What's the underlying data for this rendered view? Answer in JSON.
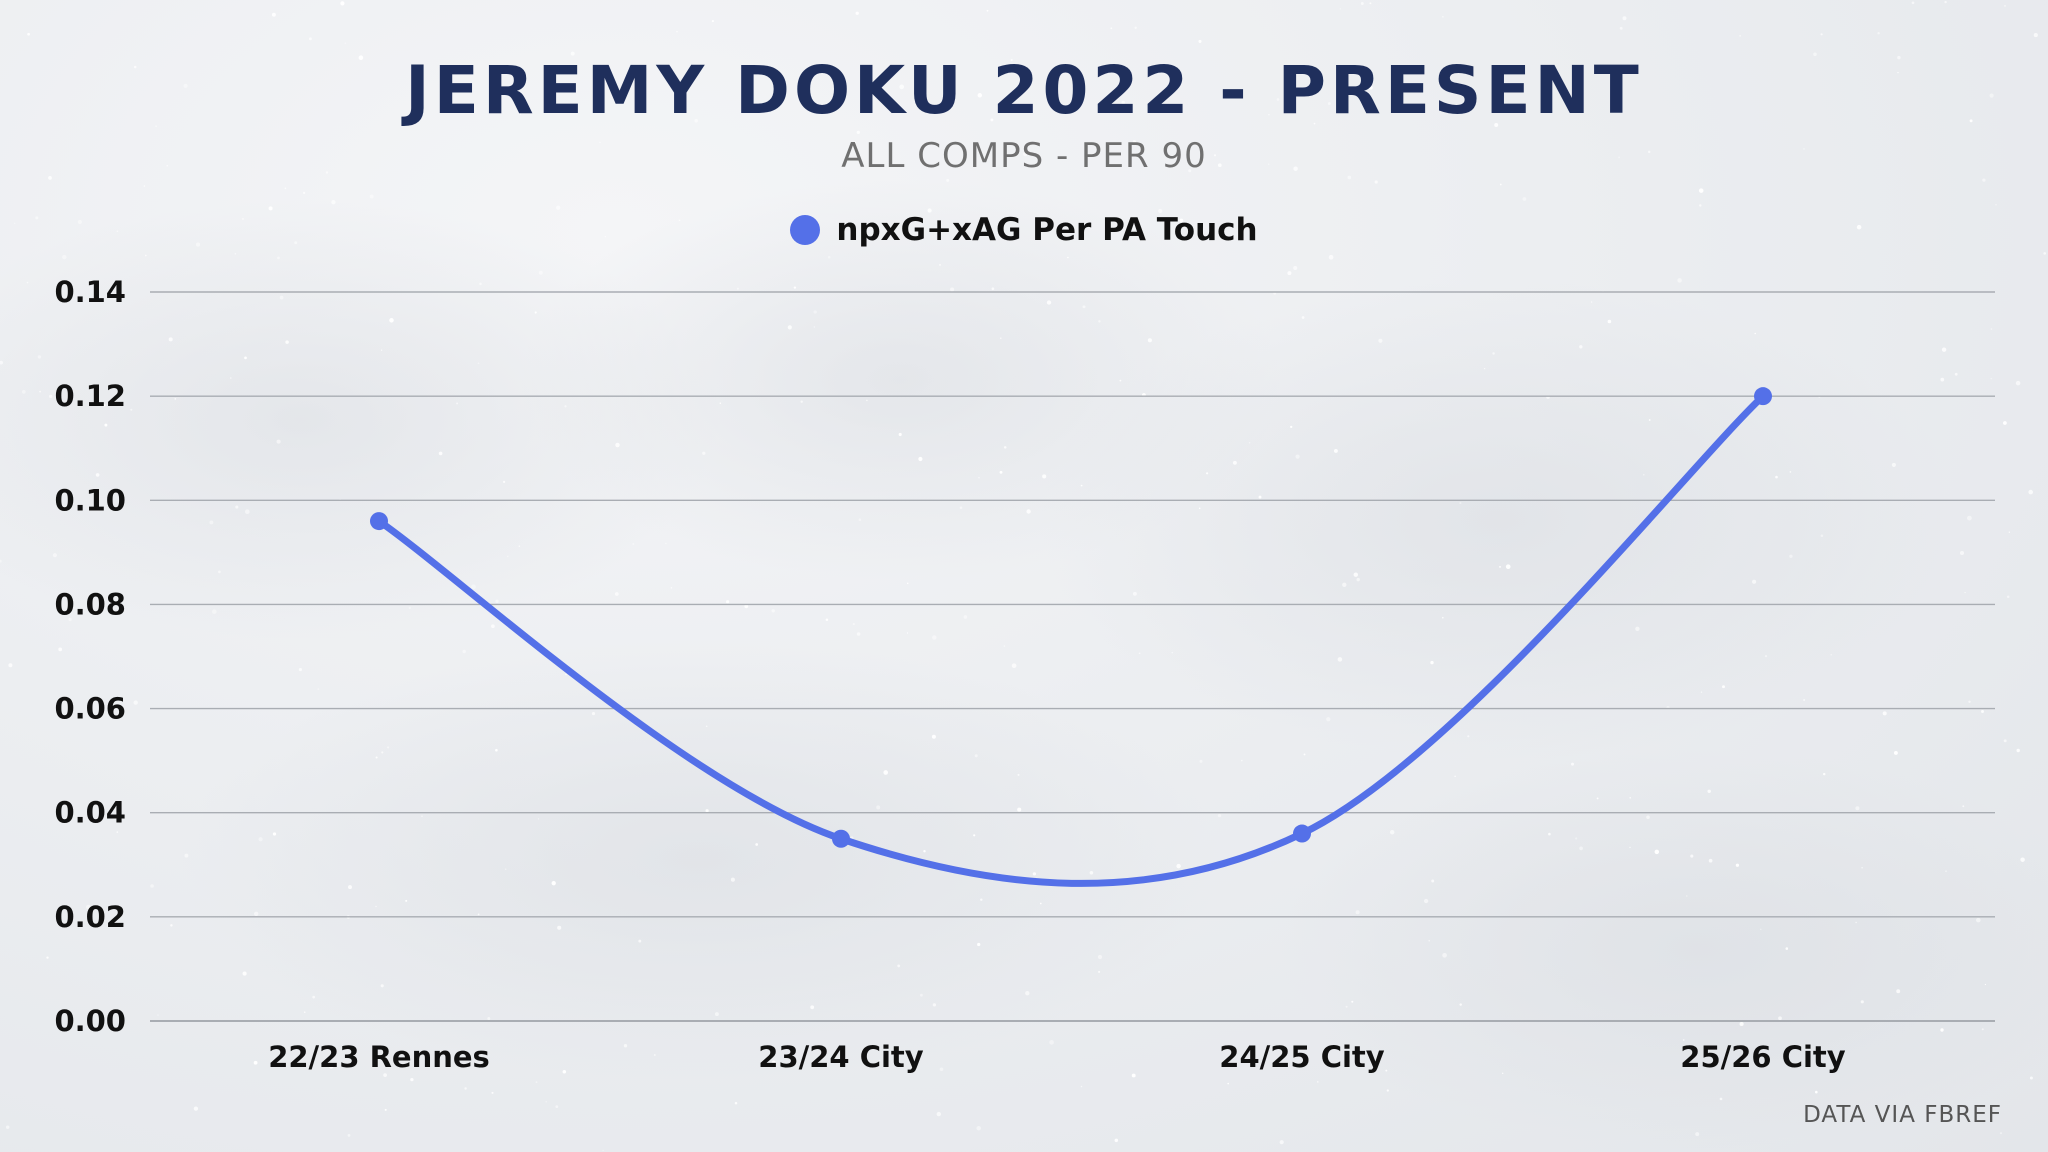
{
  "header": {
    "title": "JEREMY DOKU 2022 - PRESENT",
    "subtitle": "ALL COMPS - PER 90"
  },
  "footer": {
    "source": "DATA VIA FBREF"
  },
  "colors": {
    "series": "#5470e8",
    "title": "#1f2f5c",
    "grid": "#a9adb3"
  },
  "chart_data": {
    "type": "line",
    "smooth": true,
    "categories": [
      "22/23 Rennes",
      "23/24 City",
      "24/25 City",
      "25/26 City"
    ],
    "series": [
      {
        "name": "npxG+xAG Per PA Touch",
        "values": [
          0.096,
          0.035,
          0.036,
          0.12
        ]
      }
    ],
    "ylim": [
      0,
      0.14
    ],
    "yticks": [
      "0.00",
      "0.02",
      "0.04",
      "0.06",
      "0.08",
      "0.10",
      "0.12",
      "0.14"
    ],
    "grid": true,
    "legend": "top-center"
  }
}
